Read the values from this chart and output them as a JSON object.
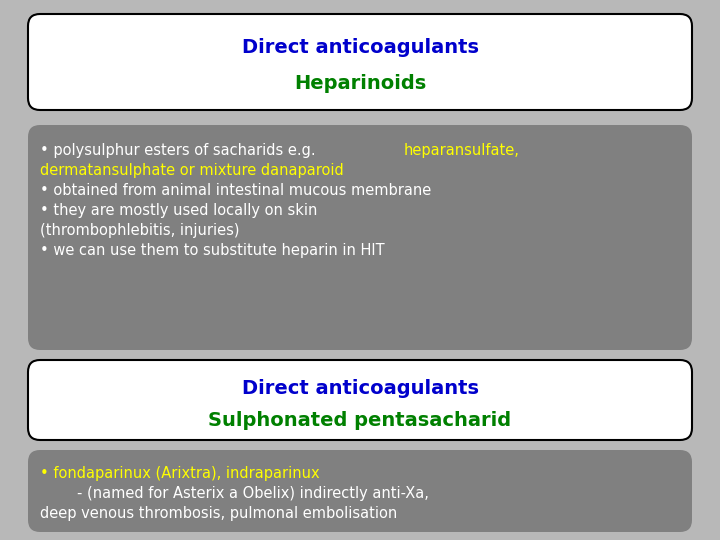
{
  "bg_color": "#b8b8b8",
  "box1_bg": "#ffffff",
  "box1_border": "#000000",
  "box1_title1": "Direct anticoagulants",
  "box1_title1_color": "#0000cc",
  "box1_title2": "Heparinoids",
  "box1_title2_color": "#008000",
  "box2_bg": "#808080",
  "box2_border": "#808080",
  "box3_bg": "#ffffff",
  "box3_border": "#000000",
  "box3_title1": "Direct anticoagulants",
  "box3_title1_color": "#0000cc",
  "box3_title2": "Sulphonated pentasacharid",
  "box3_title2_color": "#008000",
  "box4_bg": "#808080",
  "box4_border": "#808080",
  "box4_line1": "• fondaparinux (Arixtra), indraparinux",
  "box4_line1_color": "#ffff00",
  "box4_line2a": "        - (named for Asterix a Obelix) indirectly anti-Xa,",
  "box4_line2b": "deep venous thrombosis, pulmonal embolisation",
  "box4_line2_color": "#ffffff",
  "white_text": "• polysulphur esters of sacharids e.g. ",
  "yellow_text1": "heparansulfate,",
  "yellow_text2": "dermatansulphate or mixture danaparoid",
  "line3": "• obtained from animal intestinal mucous membrane",
  "line4": "• they are mostly used locally on skin",
  "line5": "(thrombophlebitis, injuries)",
  "line6": "• we can use them to substitute heparin in HIT",
  "white_color": "#ffffff",
  "yellow_color": "#ffff00",
  "font_size_title": 14,
  "font_size_body": 10.5
}
